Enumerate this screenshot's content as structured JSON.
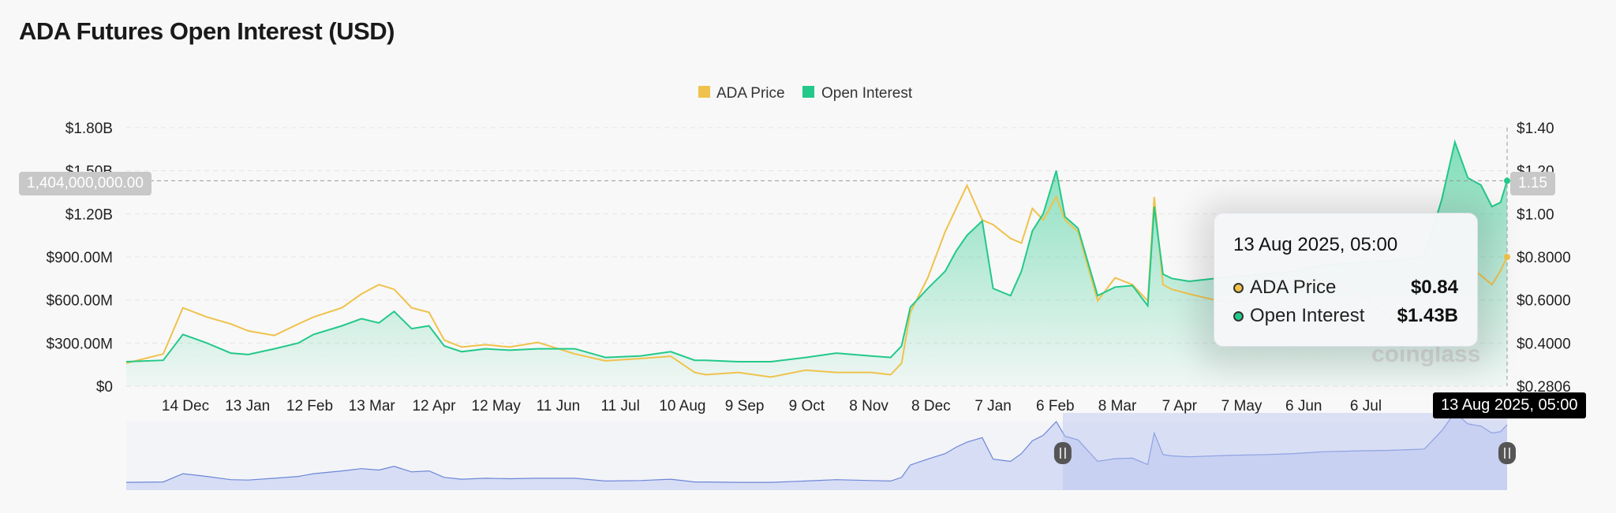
{
  "page": {
    "title": "ADA Futures Open Interest (USD)"
  },
  "legend": [
    {
      "label": "ADA Price",
      "color": "#f0c24b"
    },
    {
      "label": "Open Interest",
      "color": "#22c98a"
    }
  ],
  "tooltip": {
    "date": "13 Aug 2025, 05:00",
    "rows": [
      {
        "label": "ADA Price",
        "value": "$0.84",
        "color": "#f0c24b"
      },
      {
        "label": "Open Interest",
        "value": "$1.43B",
        "color": "#22c98a"
      }
    ]
  },
  "crosshair": {
    "x_label": "13 Aug 2025, 05:00",
    "y_left_label": "1,404,000,000.00",
    "y_right_label": "1.15"
  },
  "watermark": "coinglass",
  "chart_data": {
    "type": "area",
    "title": "ADA Futures Open Interest (USD)",
    "x_tick_labels": [
      "14 Dec",
      "13 Jan",
      "12 Feb",
      "13 Mar",
      "12 Apr",
      "12 May",
      "11 Jun",
      "11 Jul",
      "10 Aug",
      "9 Sep",
      "9 Oct",
      "8 Nov",
      "8 Dec",
      "7 Jan",
      "6 Feb",
      "8 Mar",
      "7 Apr",
      "7 May",
      "6 Jun",
      "6 Jul"
    ],
    "y_left": {
      "ticks": [
        "$0",
        "$300.00M",
        "$600.00M",
        "$900.00M",
        "$1.20B",
        "$1.50B",
        "$1.80B"
      ],
      "range": [
        0,
        1800000000
      ]
    },
    "y_right": {
      "ticks": [
        "$0.2806",
        "$0.4000",
        "$0.6000",
        "$0.8000",
        "$1.00",
        "$1.20",
        "$1.40"
      ],
      "range": [
        0.2806,
        1.4
      ]
    },
    "x_range": [
      "2023-11-18",
      "2025-08-13"
    ],
    "series": [
      {
        "name": "Open Interest",
        "axis": "left",
        "color": "#22c98a",
        "x": [
          "2023-11-18",
          "2023-12-05",
          "2023-12-14",
          "2023-12-25",
          "2024-01-05",
          "2024-01-13",
          "2024-01-25",
          "2024-02-05",
          "2024-02-12",
          "2024-02-25",
          "2024-03-05",
          "2024-03-13",
          "2024-03-20",
          "2024-03-28",
          "2024-04-05",
          "2024-04-12",
          "2024-04-20",
          "2024-05-01",
          "2024-05-12",
          "2024-05-25",
          "2024-06-11",
          "2024-06-25",
          "2024-07-11",
          "2024-07-25",
          "2024-08-05",
          "2024-08-10",
          "2024-08-25",
          "2024-09-09",
          "2024-09-25",
          "2024-10-09",
          "2024-10-25",
          "2024-11-03",
          "2024-11-08",
          "2024-11-12",
          "2024-11-20",
          "2024-11-28",
          "2024-12-03",
          "2024-12-08",
          "2024-12-15",
          "2024-12-20",
          "2024-12-28",
          "2025-01-02",
          "2025-01-07",
          "2025-01-12",
          "2025-01-18",
          "2025-01-22",
          "2025-01-28",
          "2025-02-06",
          "2025-02-14",
          "2025-02-22",
          "2025-03-01",
          "2025-03-04",
          "2025-03-08",
          "2025-03-12",
          "2025-03-20",
          "2025-04-07",
          "2025-04-25",
          "2025-05-07",
          "2025-05-20",
          "2025-06-06",
          "2025-06-20",
          "2025-07-06",
          "2025-07-14",
          "2025-07-20",
          "2025-07-26",
          "2025-08-01",
          "2025-08-06",
          "2025-08-10",
          "2025-08-13"
        ],
        "values": [
          170000000,
          180000000,
          360000000,
          300000000,
          230000000,
          220000000,
          260000000,
          300000000,
          360000000,
          420000000,
          470000000,
          440000000,
          520000000,
          400000000,
          420000000,
          280000000,
          240000000,
          260000000,
          250000000,
          260000000,
          260000000,
          200000000,
          210000000,
          240000000,
          180000000,
          180000000,
          170000000,
          170000000,
          200000000,
          230000000,
          210000000,
          200000000,
          280000000,
          550000000,
          680000000,
          800000000,
          940000000,
          1050000000,
          1150000000,
          680000000,
          630000000,
          800000000,
          1080000000,
          1200000000,
          1500000000,
          1180000000,
          1100000000,
          630000000,
          690000000,
          700000000,
          560000000,
          1250000000,
          780000000,
          750000000,
          730000000,
          760000000,
          780000000,
          800000000,
          840000000,
          860000000,
          870000000,
          900000000,
          1300000000,
          1700000000,
          1450000000,
          1400000000,
          1250000000,
          1280000000,
          1430000000
        ]
      },
      {
        "name": "ADA Price",
        "axis": "right",
        "color": "#f0c24b",
        "x": [
          "2023-11-18",
          "2023-12-05",
          "2023-12-14",
          "2023-12-25",
          "2024-01-05",
          "2024-01-13",
          "2024-01-25",
          "2024-02-05",
          "2024-02-12",
          "2024-02-25",
          "2024-03-05",
          "2024-03-13",
          "2024-03-20",
          "2024-03-28",
          "2024-04-05",
          "2024-04-12",
          "2024-04-20",
          "2024-05-01",
          "2024-05-12",
          "2024-05-25",
          "2024-06-11",
          "2024-06-25",
          "2024-07-11",
          "2024-07-25",
          "2024-08-05",
          "2024-08-10",
          "2024-08-25",
          "2024-09-09",
          "2024-09-25",
          "2024-10-09",
          "2024-10-25",
          "2024-11-03",
          "2024-11-08",
          "2024-11-12",
          "2024-11-20",
          "2024-11-28",
          "2024-12-03",
          "2024-12-08",
          "2024-12-15",
          "2024-12-20",
          "2024-12-28",
          "2025-01-02",
          "2025-01-07",
          "2025-01-12",
          "2025-01-18",
          "2025-01-22",
          "2025-01-28",
          "2025-02-06",
          "2025-02-14",
          "2025-02-22",
          "2025-03-01",
          "2025-03-04",
          "2025-03-08",
          "2025-03-12",
          "2025-03-20",
          "2025-04-07",
          "2025-04-25",
          "2025-05-07",
          "2025-05-20",
          "2025-06-06",
          "2025-06-20",
          "2025-07-06",
          "2025-07-14",
          "2025-07-20",
          "2025-07-26",
          "2025-08-01",
          "2025-08-06",
          "2025-08-10",
          "2025-08-13"
        ],
        "values": [
          0.38,
          0.42,
          0.62,
          0.58,
          0.55,
          0.52,
          0.5,
          0.55,
          0.58,
          0.62,
          0.68,
          0.72,
          0.7,
          0.62,
          0.6,
          0.48,
          0.45,
          0.46,
          0.45,
          0.47,
          0.42,
          0.39,
          0.4,
          0.41,
          0.34,
          0.33,
          0.34,
          0.32,
          0.35,
          0.34,
          0.34,
          0.33,
          0.38,
          0.6,
          0.75,
          0.95,
          1.05,
          1.15,
          1.0,
          0.98,
          0.92,
          0.9,
          1.05,
          1.0,
          1.1,
          1.0,
          0.95,
          0.65,
          0.75,
          0.72,
          0.65,
          1.1,
          0.72,
          0.7,
          0.68,
          0.64,
          0.68,
          0.72,
          0.74,
          0.68,
          0.58,
          0.6,
          0.72,
          0.86,
          0.8,
          0.76,
          0.72,
          0.78,
          0.84
        ]
      }
    ],
    "navigator": {
      "range_start": "2025-01-21",
      "range_end": "2025-08-13"
    }
  }
}
